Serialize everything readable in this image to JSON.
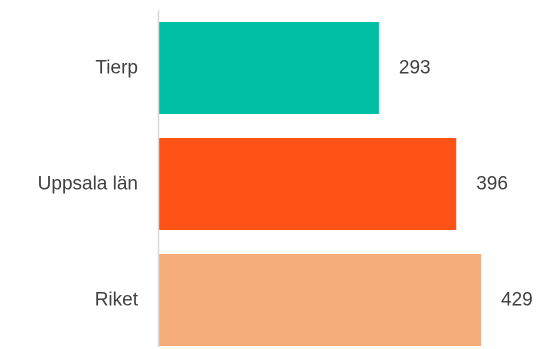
{
  "chart_data": {
    "type": "bar",
    "orientation": "horizontal",
    "categories": [
      "Tierp",
      "Uppsala län",
      "Riket"
    ],
    "values": [
      293,
      396,
      429
    ],
    "colors": [
      "#00BFA5",
      "#FF5216",
      "#F5AD7C"
    ],
    "axis_color": "#D9D9D9",
    "xlim": [
      0,
      429
    ],
    "grid": false,
    "legend": "none",
    "data_labels": true
  }
}
